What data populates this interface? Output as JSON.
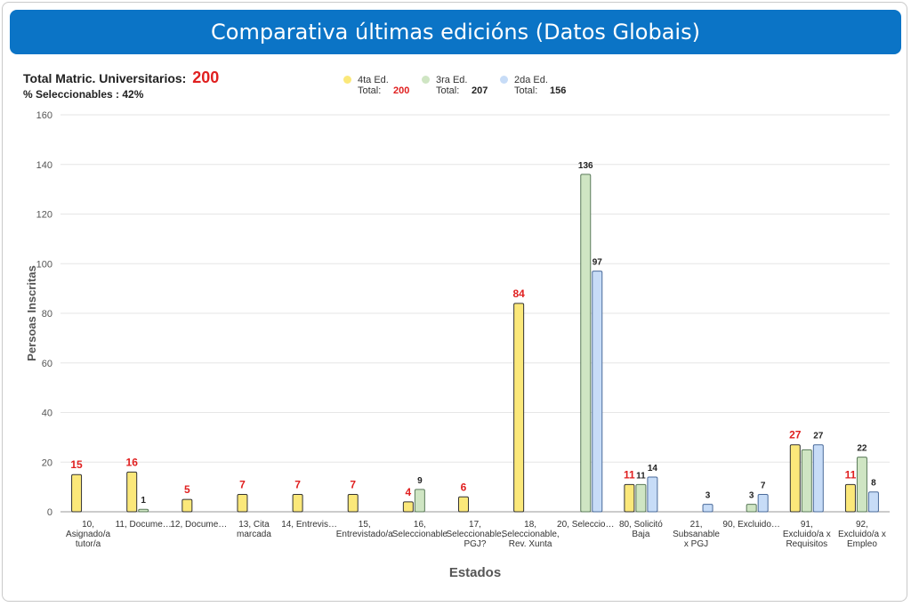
{
  "header": {
    "title": "Comparativa últimas edicións (Datos Globais)"
  },
  "summary": {
    "total_label": "Total Matric. Universitarios:",
    "total_value": "200",
    "selectable_label": "% Seleccionables : 42%"
  },
  "colors": {
    "series_fill": [
      "#fbe87a",
      "#cfe5c3",
      "#c7dcf7"
    ],
    "series_stroke": [
      "#333333",
      "#5a7a5a",
      "#4a6a9a"
    ],
    "label_first": "#e02020",
    "label_other": "#222222",
    "title_bg": "#0b74c6"
  },
  "legend": [
    {
      "name": "4ta Ed.",
      "total_label": "Total:",
      "total_value": "200",
      "color": "#fbe87a",
      "value_color": "#e02020"
    },
    {
      "name": "3ra Ed.",
      "total_label": "Total:",
      "total_value": "207",
      "color": "#cfe5c3",
      "value_color": "#222222"
    },
    {
      "name": "2da Ed.",
      "total_label": "Total:",
      "total_value": "156",
      "color": "#c7dcf7",
      "value_color": "#222222"
    }
  ],
  "chart_data": {
    "type": "bar",
    "xlabel": "Estados",
    "ylabel": "Persoas Inscritas",
    "ylim": [
      0,
      160
    ],
    "yticks": [
      0,
      20,
      40,
      60,
      80,
      100,
      120,
      140,
      160
    ],
    "grid": true,
    "legend_position": "top",
    "categories": [
      [
        "10,",
        "Asignado/a",
        "tutor/a"
      ],
      [
        "11, Docume…"
      ],
      [
        "12, Docume…"
      ],
      [
        "13, Cita",
        "marcada"
      ],
      [
        "14, Entrevis…"
      ],
      [
        "15,",
        "Entrevistado/a"
      ],
      [
        "16,",
        "Seleccionable"
      ],
      [
        "17,",
        "Seleccionable,",
        "PGJ?"
      ],
      [
        "18,",
        "Seleccionable,",
        "Rev. Xunta"
      ],
      [
        "20, Seleccio…"
      ],
      [
        "80, Solicitó",
        "Baja"
      ],
      [
        "21,",
        "Subsanable",
        "x PGJ"
      ],
      [
        "90, Excluido…"
      ],
      [
        "91,",
        "Excluido/a x",
        "Requisitos"
      ],
      [
        "92,",
        "Excluido/a x",
        "Empleo"
      ]
    ],
    "series": [
      {
        "name": "4ta Ed.",
        "values": [
          15,
          16,
          5,
          7,
          7,
          7,
          4,
          6,
          84,
          null,
          11,
          null,
          null,
          27,
          11
        ]
      },
      {
        "name": "3ra Ed.",
        "values": [
          null,
          1,
          null,
          null,
          null,
          null,
          9,
          null,
          null,
          136,
          11,
          null,
          3,
          25,
          22
        ]
      },
      {
        "name": "2da Ed.",
        "values": [
          null,
          null,
          null,
          null,
          null,
          null,
          null,
          null,
          null,
          97,
          14,
          3,
          7,
          27,
          8
        ]
      }
    ],
    "data_labels": [
      [
        "15",
        "16",
        "5",
        "7",
        "7",
        "7",
        "4",
        "6",
        "84",
        "",
        "11",
        "",
        "",
        "27",
        "11"
      ],
      [
        "",
        "1",
        "",
        "",
        "",
        "",
        "9",
        "",
        "",
        "136",
        "11",
        "",
        "3",
        "",
        "22"
      ],
      [
        "",
        "",
        "",
        "",
        "",
        "",
        "",
        "",
        "",
        "97",
        "14",
        "3",
        "7",
        "27",
        "8"
      ]
    ]
  }
}
